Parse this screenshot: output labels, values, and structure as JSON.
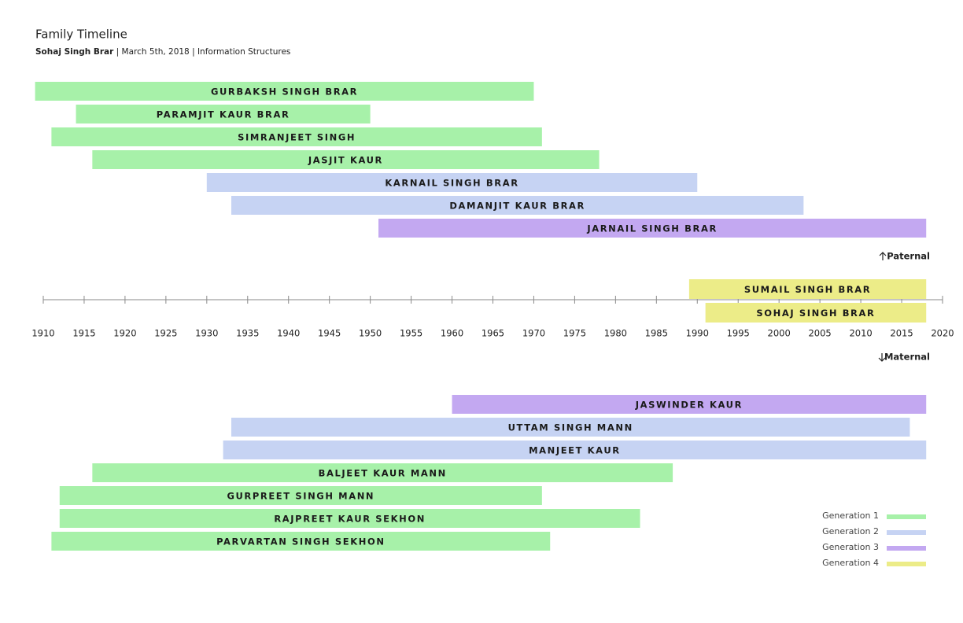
{
  "chart_data": {
    "type": "timeline",
    "title": "Family Timeline",
    "author": "Sohaj Singh Brar",
    "subtitle": "| March 5th, 2018 | Information Structures",
    "xlim": [
      1910,
      2020
    ],
    "xticks": [
      1910,
      1915,
      1920,
      1925,
      1930,
      1935,
      1940,
      1945,
      1950,
      1955,
      1960,
      1965,
      1970,
      1975,
      1980,
      1985,
      1990,
      1995,
      2000,
      2005,
      2010,
      2015,
      2020
    ],
    "legend": [
      {
        "label": "Generation 1",
        "color": "#a7f1a9"
      },
      {
        "label": "Generation 2",
        "color": "#c6d3f3"
      },
      {
        "label": "Generation 3",
        "color": "#c3a8f1"
      },
      {
        "label": "Generation 4",
        "color": "#ecec88"
      }
    ],
    "groups": [
      {
        "name": "Paternal",
        "bars": [
          {
            "label": "GURBAKSH SINGH BRAR",
            "start": 1909,
            "end": 1970,
            "color": "#a7f1a9"
          },
          {
            "label": "PARAMJIT KAUR BRAR",
            "start": 1914,
            "end": 1950,
            "color": "#a7f1a9"
          },
          {
            "label": "SIMRANJEET SINGH",
            "start": 1911,
            "end": 1971,
            "color": "#a7f1a9"
          },
          {
            "label": "JASJIT KAUR",
            "start": 1916,
            "end": 1978,
            "color": "#a7f1a9"
          },
          {
            "label": "KARNAIL SINGH BRAR",
            "start": 1930,
            "end": 1990,
            "color": "#c6d3f3"
          },
          {
            "label": "DAMANJIT KAUR BRAR",
            "start": 1933,
            "end": 2003,
            "color": "#c6d3f3"
          },
          {
            "label": "JARNAIL SINGH BRAR",
            "start": 1951,
            "end": 2018,
            "color": "#c3a8f1"
          }
        ]
      },
      {
        "bars": [
          {
            "label": "SUMAIL SINGH BRAR",
            "start": 1989,
            "end": 2018,
            "color": "#ecec88"
          },
          {
            "label": "SOHAJ SINGH BRAR",
            "start": 1991,
            "end": 2018,
            "color": "#ecec88"
          }
        ]
      },
      {
        "name": "Maternal",
        "bars": [
          {
            "label": "JASWINDER KAUR",
            "start": 1960,
            "end": 2018,
            "color": "#c3a8f1"
          },
          {
            "label": "UTTAM SINGH MANN",
            "start": 1933,
            "end": 2016,
            "color": "#c6d3f3"
          },
          {
            "label": "MANJEET KAUR",
            "start": 1932,
            "end": 2018,
            "color": "#c6d3f3"
          },
          {
            "label": "BALJEET KAUR MANN",
            "start": 1916,
            "end": 1987,
            "color": "#a7f1a9"
          },
          {
            "label": "GURPREET SINGH MANN",
            "start": 1912,
            "end": 1971,
            "color": "#a7f1a9"
          },
          {
            "label": "RAJPREET KAUR SEKHON",
            "start": 1912,
            "end": 1983,
            "color": "#a7f1a9"
          },
          {
            "label": "PARVARTAN SINGH SEKHON",
            "start": 1911,
            "end": 1972,
            "color": "#a7f1a9"
          }
        ]
      }
    ]
  }
}
